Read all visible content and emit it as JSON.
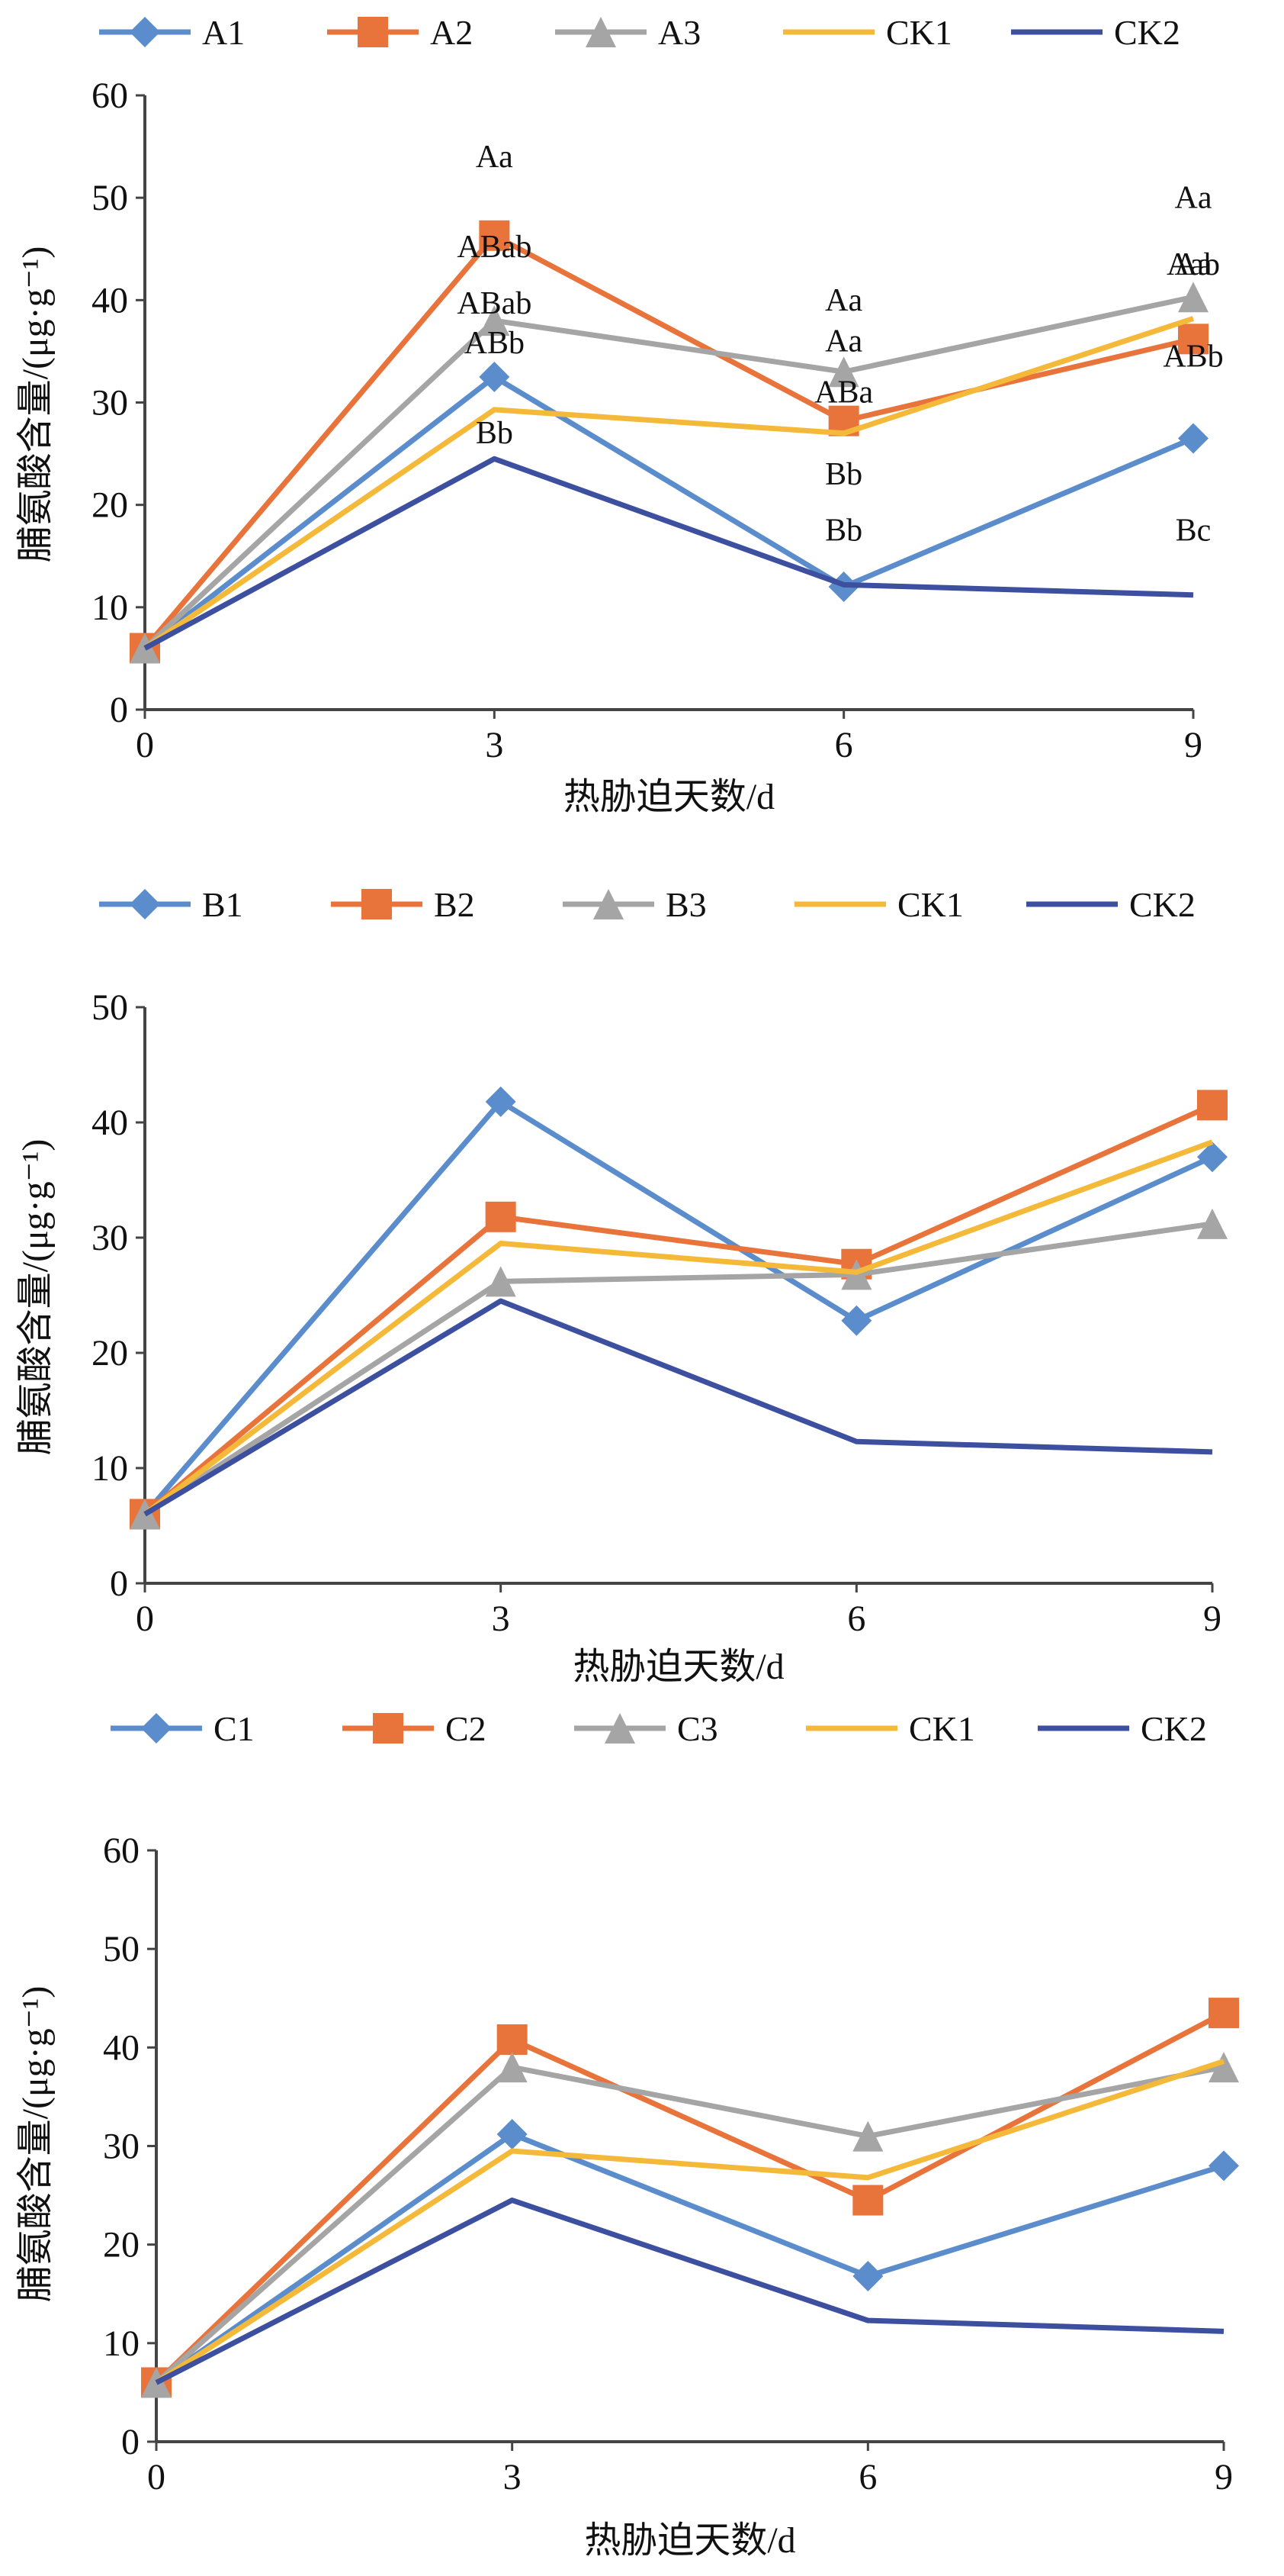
{
  "chart_data": [
    {
      "type": "line",
      "x": [
        0,
        3,
        6,
        9
      ],
      "xlabel": "热胁迫天数/d",
      "ylabel": "脯氨酸含量/(μg·g⁻¹)",
      "ylim": [
        0,
        60
      ],
      "yticks": [
        0,
        10,
        20,
        30,
        40,
        50,
        60
      ],
      "legend_position": "top",
      "series": [
        {
          "name": "A1",
          "values": [
            6,
            32.5,
            12,
            26.5
          ],
          "color": "#5B8CCB",
          "marker": "diamond"
        },
        {
          "name": "A2",
          "values": [
            6,
            46.3,
            28.2,
            36.2
          ],
          "color": "#E8743B",
          "marker": "square"
        },
        {
          "name": "A3",
          "values": [
            6,
            38,
            33,
            40.3
          ],
          "color": "#A5A5A5",
          "marker": "triangle"
        },
        {
          "name": "CK1",
          "values": [
            6,
            29.3,
            27,
            38.2
          ],
          "color": "#F5B93A",
          "marker": "none"
        },
        {
          "name": "CK2",
          "values": [
            6,
            24.5,
            12.2,
            11.2
          ],
          "color": "#3D4F9F",
          "marker": "none"
        }
      ],
      "annotations": [
        {
          "x": 3,
          "y": 53,
          "text": "Aa"
        },
        {
          "x": 3,
          "y": 44.2,
          "text": "ABab"
        },
        {
          "x": 3,
          "y": 38.7,
          "text": "ABab"
        },
        {
          "x": 3,
          "y": 34.8,
          "text": "ABb"
        },
        {
          "x": 3,
          "y": 26,
          "text": "Bb"
        },
        {
          "x": 6,
          "y": 39,
          "text": "Aa"
        },
        {
          "x": 6,
          "y": 35,
          "text": "Aa"
        },
        {
          "x": 6,
          "y": 30,
          "text": "ABa"
        },
        {
          "x": 6,
          "y": 22,
          "text": "Bb"
        },
        {
          "x": 6,
          "y": 16.5,
          "text": "Bb"
        },
        {
          "x": 9,
          "y": 49,
          "text": "Aa"
        },
        {
          "x": 9,
          "y": 42.5,
          "text": "Aab"
        },
        {
          "x": 9,
          "y": 42.5,
          "text": "Aa"
        },
        {
          "x": 9,
          "y": 33.5,
          "text": "ABb"
        },
        {
          "x": 9,
          "y": 16.5,
          "text": "Bc"
        }
      ]
    },
    {
      "type": "line",
      "x": [
        0,
        3,
        6,
        9
      ],
      "xlabel": "热胁迫天数/d",
      "ylabel": "脯氨酸含量/(μg·g⁻¹)",
      "ylim": [
        0,
        50
      ],
      "yticks": [
        0,
        10,
        20,
        30,
        40,
        50
      ],
      "legend_position": "top",
      "series": [
        {
          "name": "B1",
          "values": [
            6,
            41.8,
            22.8,
            37
          ],
          "color": "#5B8CCB",
          "marker": "diamond"
        },
        {
          "name": "B2",
          "values": [
            6,
            31.8,
            27.7,
            41.5
          ],
          "color": "#E8743B",
          "marker": "square"
        },
        {
          "name": "B3",
          "values": [
            6,
            26.2,
            26.8,
            31.2
          ],
          "color": "#A5A5A5",
          "marker": "triangle"
        },
        {
          "name": "CK1",
          "values": [
            6,
            29.5,
            27,
            38.3
          ],
          "color": "#F5B93A",
          "marker": "none"
        },
        {
          "name": "CK2",
          "values": [
            6,
            24.5,
            12.3,
            11.4
          ],
          "color": "#3D4F9F",
          "marker": "none"
        }
      ]
    },
    {
      "type": "line",
      "x": [
        0,
        3,
        6,
        9
      ],
      "xlabel": "热胁迫天数/d",
      "ylabel": "脯氨酸含量/(μg·g⁻¹)",
      "ylim": [
        0,
        60
      ],
      "yticks": [
        0,
        10,
        20,
        30,
        40,
        50,
        60
      ],
      "legend_position": "top",
      "series": [
        {
          "name": "C1",
          "values": [
            6,
            31.2,
            16.8,
            28
          ],
          "color": "#5B8CCB",
          "marker": "diamond"
        },
        {
          "name": "C2",
          "values": [
            6,
            40.8,
            24.5,
            43.5
          ],
          "color": "#E8743B",
          "marker": "square"
        },
        {
          "name": "C3",
          "values": [
            6,
            38,
            31,
            38
          ],
          "color": "#A5A5A5",
          "marker": "triangle"
        },
        {
          "name": "CK1",
          "values": [
            6,
            29.5,
            26.8,
            38.6
          ],
          "color": "#F5B93A",
          "marker": "none"
        },
        {
          "name": "CK2",
          "values": [
            6,
            24.5,
            12.3,
            11.2
          ],
          "color": "#3D4F9F",
          "marker": "none"
        }
      ]
    }
  ]
}
